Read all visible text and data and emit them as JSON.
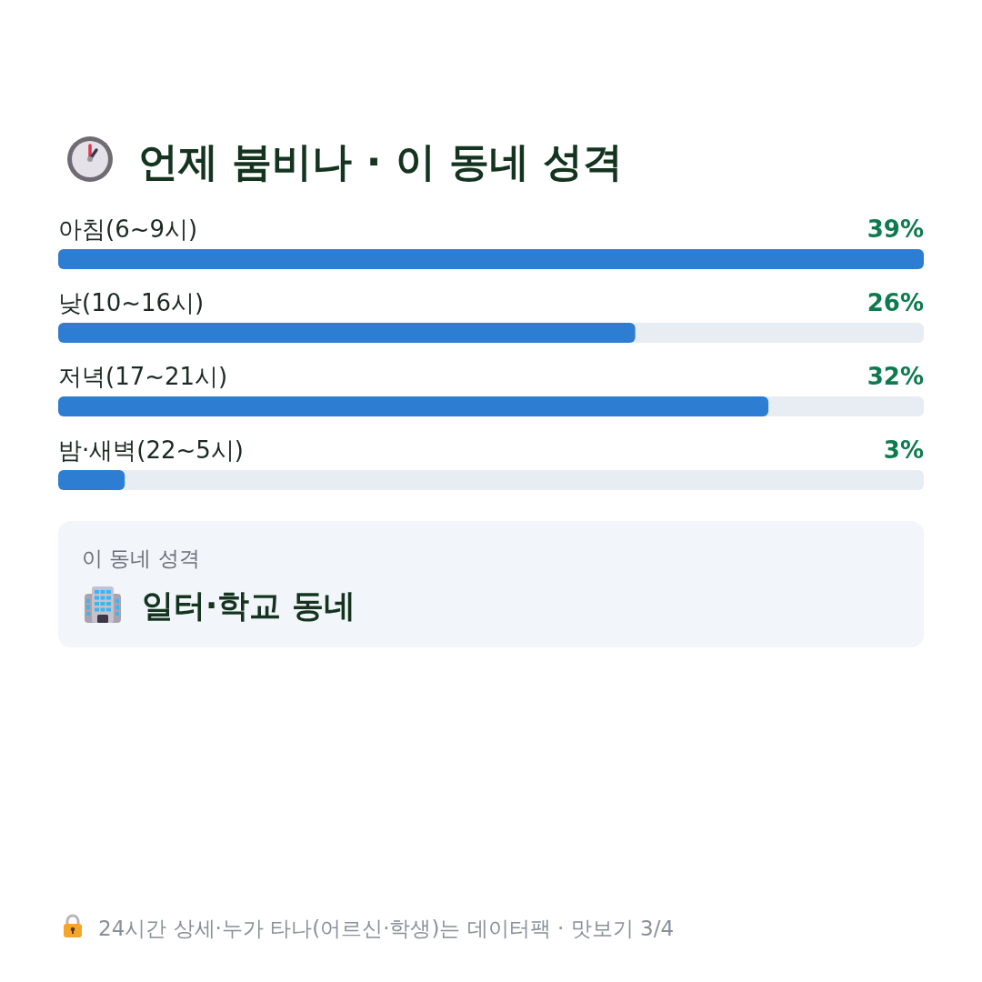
{
  "chart_data": [
    {
      "type": "bar",
      "orientation": "horizontal",
      "title": "언제 붐비나 · 이 동네 성격",
      "categories": [
        "아침(6~9시)",
        "낮(10~16시)",
        "저녁(17~21시)",
        "밤·새벽(22~5시)"
      ],
      "values": [
        39,
        26,
        32,
        3
      ],
      "value_labels": [
        "39%",
        "26%",
        "32%",
        "3%"
      ],
      "color": "#2d7dd2",
      "annotations": [
        "24시간 상세·누가 타나(어르신·학생)는 데이터팩 · 맛보기 3/4"
      ]
    },
    {
      "type": "other",
      "title": "이 동네 성격",
      "annotations": [
        "일터·학교 동네"
      ]
    }
  ]
}
